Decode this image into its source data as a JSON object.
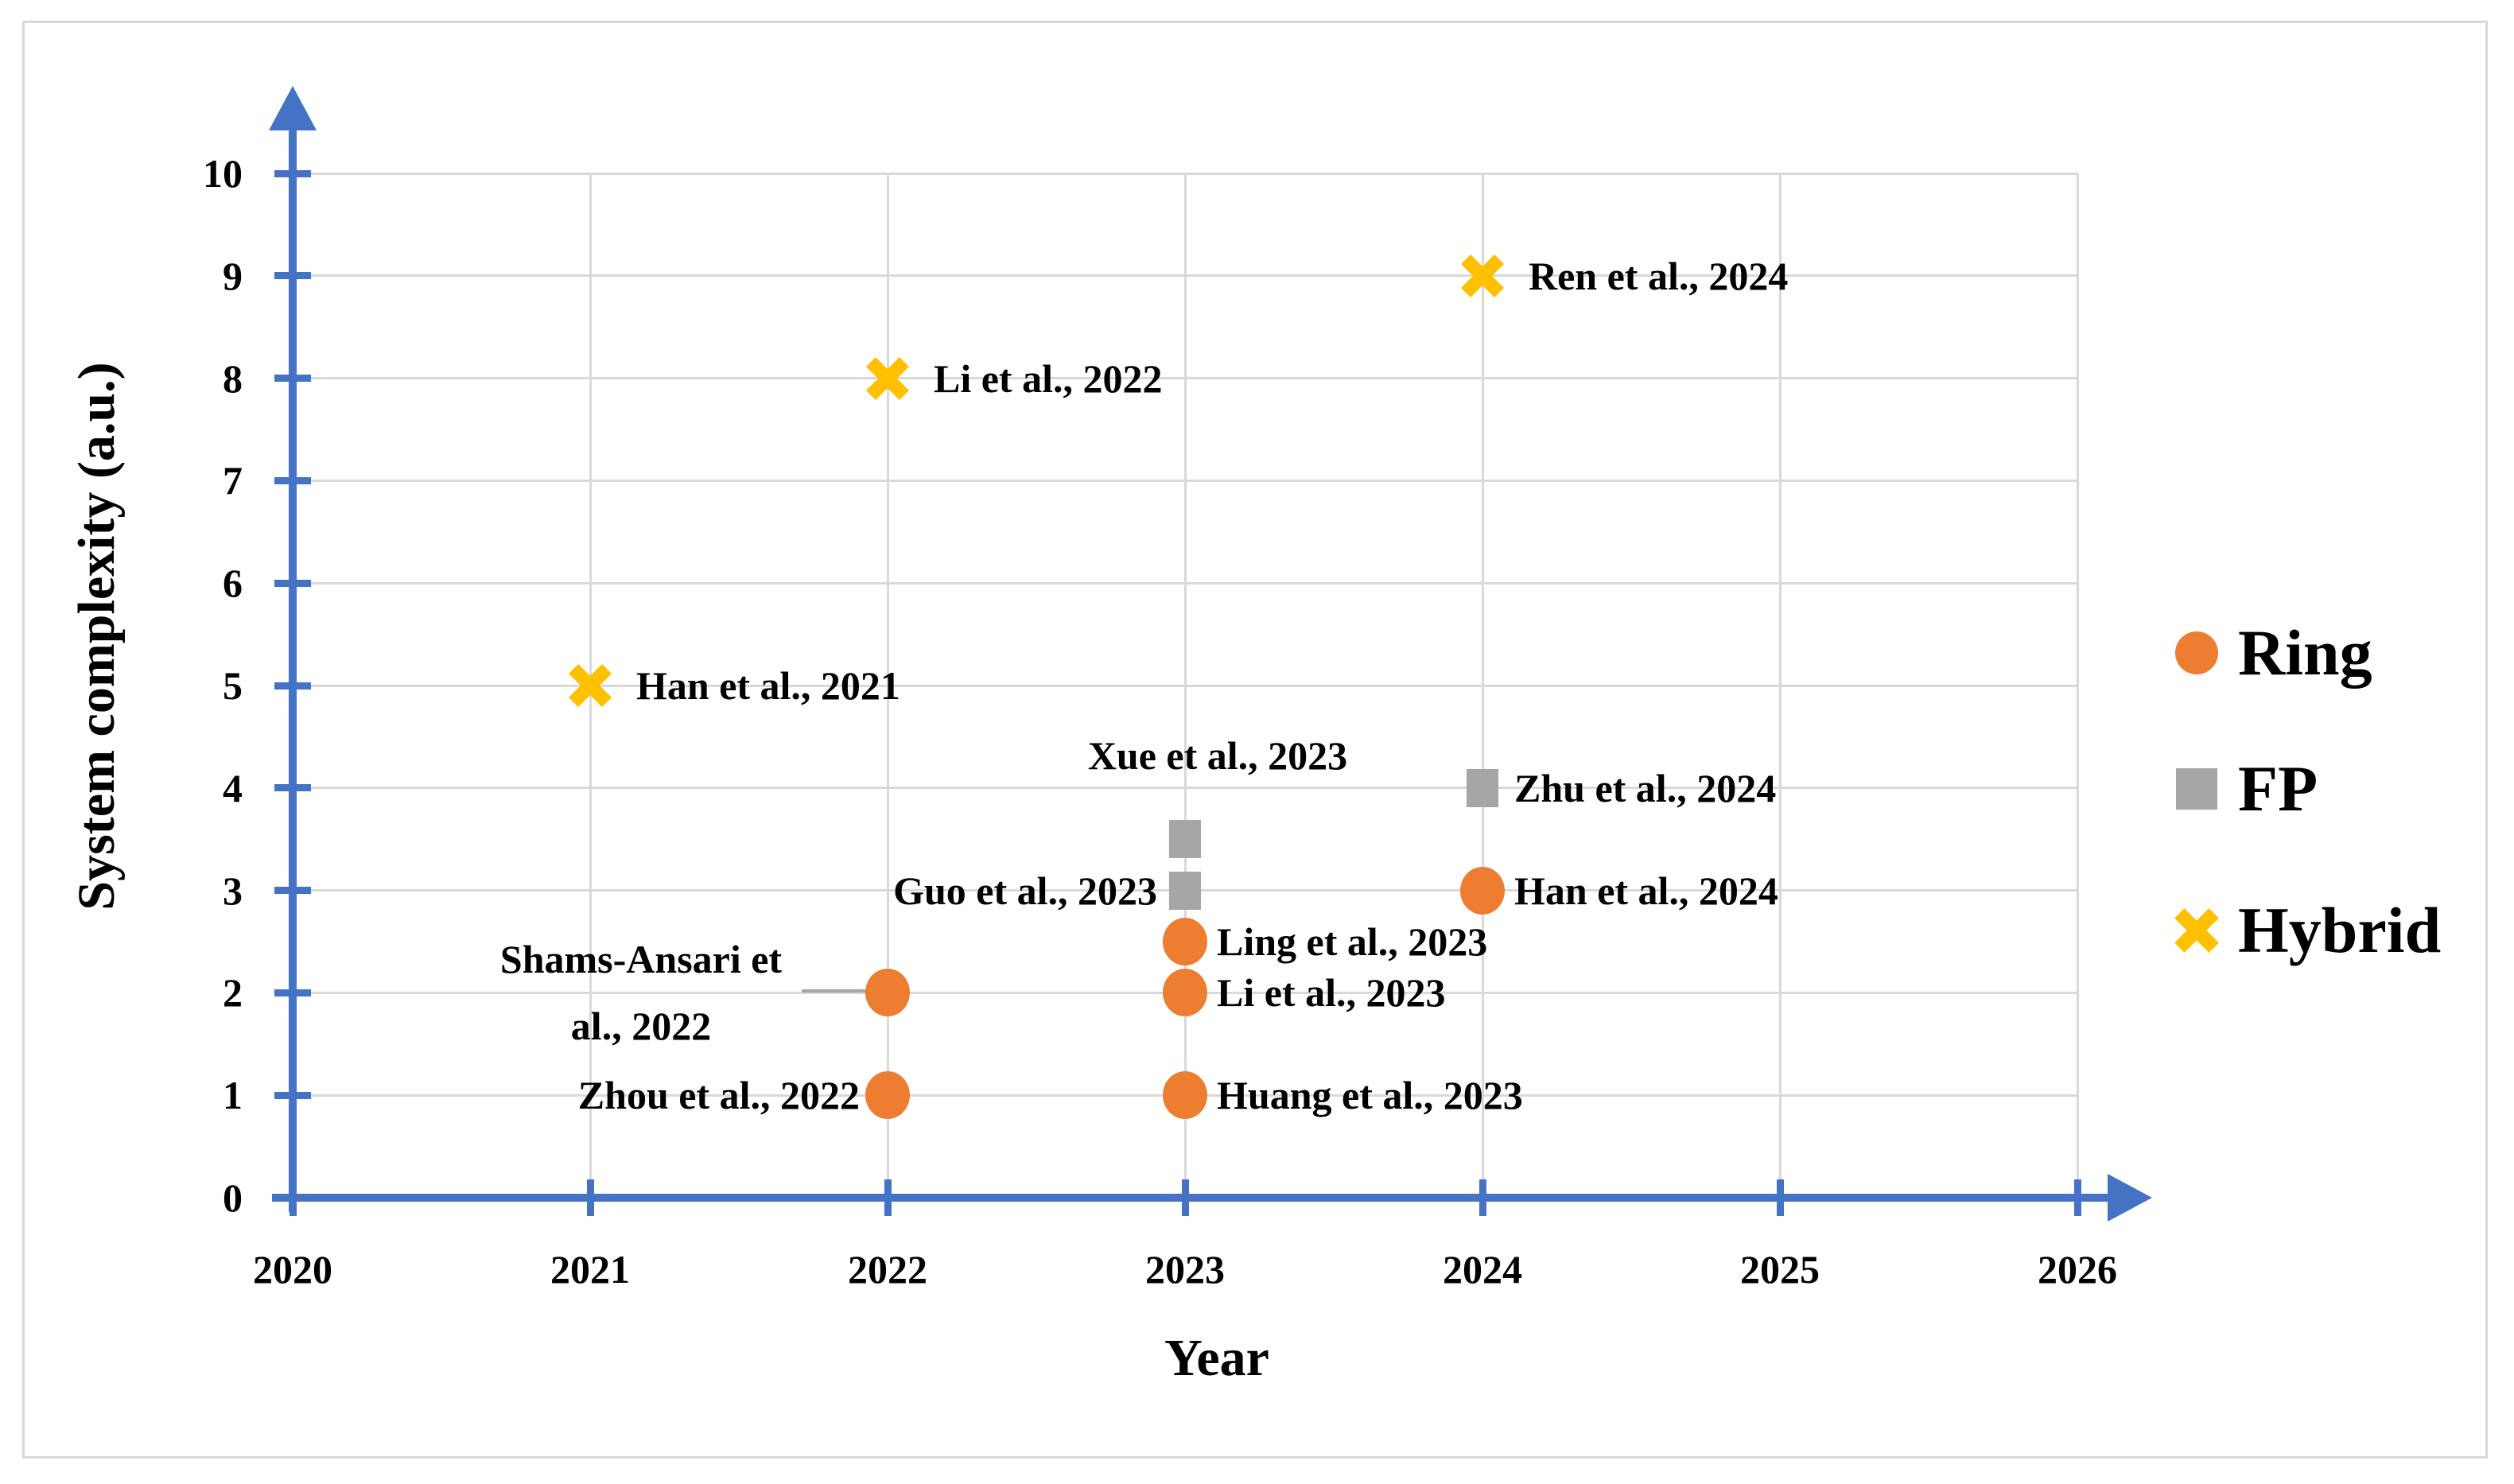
{
  "figure": {
    "background": "#ffffff",
    "border_color": "#d9d9d9",
    "text_color": "#000000"
  },
  "chart_data": {
    "type": "scatter",
    "title": "",
    "xlabel": "Year",
    "ylabel": "System complexity (a.u.)",
    "x_ticks": [
      "2020",
      "2021",
      "2022",
      "2023",
      "2024",
      "2025",
      "2026"
    ],
    "y_ticks": [
      "0",
      "1",
      "2",
      "3",
      "4",
      "5",
      "6",
      "7",
      "8",
      "9",
      "10"
    ],
    "xlim": [
      2020,
      2026.3
    ],
    "ylim": [
      0,
      10.8
    ],
    "grid": true,
    "axis_color": "#4472c4",
    "gridline_color": "#d9d9d9",
    "legend_position": "right",
    "series": [
      {
        "name": "Ring",
        "marker": "circle",
        "color": "#ED7D31",
        "points": [
          {
            "x": 2022,
            "y": 2,
            "label": "Shams-Ansari et al., 2022",
            "label_lines": [
              "Shams-Ansari et",
              "al., 2022"
            ],
            "placement": "left-multiline",
            "leader": true
          },
          {
            "x": 2022,
            "y": 1,
            "label": "Zhou et al., 2022",
            "placement": "left"
          },
          {
            "x": 2023,
            "y": 2.5,
            "label": "Ling et al., 2023",
            "placement": "right"
          },
          {
            "x": 2023,
            "y": 2,
            "label": "Li et al., 2023",
            "placement": "right"
          },
          {
            "x": 2023,
            "y": 1,
            "label": "Huang et al., 2023",
            "placement": "right"
          },
          {
            "x": 2024,
            "y": 3,
            "label": "Han et al., 2024",
            "placement": "right"
          }
        ]
      },
      {
        "name": "FP",
        "marker": "square",
        "color": "#A6A6A6",
        "points": [
          {
            "x": 2023,
            "y": 3.5,
            "label": "Xue et al., 2023",
            "placement": "above"
          },
          {
            "x": 2023,
            "y": 3,
            "label": "Guo et al., 2023",
            "placement": "left"
          },
          {
            "x": 2024,
            "y": 4,
            "label": "Zhu et al., 2024",
            "placement": "right"
          }
        ]
      },
      {
        "name": "Hybrid",
        "marker": "x",
        "color": "#FFC000",
        "points": [
          {
            "x": 2021,
            "y": 5,
            "label": "Han et al., 2021",
            "placement": "right"
          },
          {
            "x": 2022,
            "y": 8,
            "label": "Li et al., 2022",
            "placement": "right"
          },
          {
            "x": 2024,
            "y": 9,
            "label": "Ren et al., 2024",
            "placement": "right"
          }
        ]
      }
    ]
  }
}
